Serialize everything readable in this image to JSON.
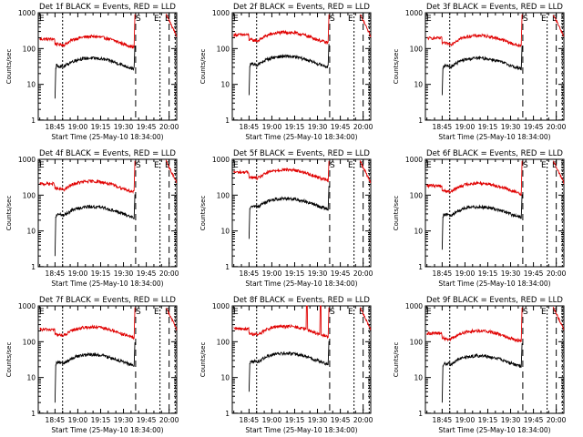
{
  "colors": {
    "events": "#000000",
    "lld": "#e00000",
    "axes": "#000000",
    "background": "#ffffff"
  },
  "chart_data": [
    {
      "type": "line",
      "title": "Det 1f BLACK = Events, RED = LLD",
      "xlabel": "Start Time (25-May-10 18:34:00)",
      "ylabel": "Counts/sec",
      "ylim": [
        1,
        1000
      ],
      "y_scale": "log",
      "y_ticks": [
        "1",
        "10",
        "100",
        "1000"
      ],
      "x_ticks": [
        "18:45",
        "19:00",
        "19:15",
        "19:30",
        "19:45",
        "20:00"
      ],
      "x_start": "18:34",
      "x_end": "20:05",
      "markers": [
        {
          "label": "S",
          "time": "19:38"
        },
        {
          "label": "E",
          "time": "19:51"
        },
        {
          "label": "E",
          "time": "20:02"
        }
      ],
      "lld_level": 160,
      "events_level": 40,
      "events_drop": 4
    },
    {
      "type": "line",
      "title": "Det 2f BLACK = Events, RED = LLD",
      "xlabel": "Start Time (25-May-10 18:34:00)",
      "ylabel": "Counts/sec",
      "ylim": [
        1,
        1000
      ],
      "y_scale": "log",
      "y_ticks": [
        "1",
        "10",
        "100",
        "1000"
      ],
      "x_ticks": [
        "18:45",
        "19:00",
        "19:15",
        "19:30",
        "19:45",
        "20:00"
      ],
      "x_start": "18:34",
      "x_end": "20:05",
      "markers": [
        {
          "label": "S",
          "time": "19:38"
        },
        {
          "label": "E",
          "time": "19:51"
        },
        {
          "label": "E",
          "time": "20:02"
        }
      ],
      "lld_level": 210,
      "events_level": 45,
      "events_drop": 5
    },
    {
      "type": "line",
      "title": "Det 3f BLACK = Events, RED = LLD",
      "xlabel": "Start Time (25-May-10 18:34:00)",
      "ylabel": "Counts/sec",
      "ylim": [
        1,
        1000
      ],
      "y_scale": "log",
      "y_ticks": [
        "1",
        "10",
        "100",
        "1000"
      ],
      "x_ticks": [
        "18:45",
        "19:00",
        "19:15",
        "19:30",
        "19:45",
        "20:00"
      ],
      "x_start": "18:34",
      "x_end": "20:05",
      "markers": [
        {
          "label": "S",
          "time": "19:38"
        },
        {
          "label": "E",
          "time": "19:51"
        },
        {
          "label": "E",
          "time": "20:02"
        }
      ],
      "lld_level": 170,
      "events_level": 40,
      "events_drop": 5
    },
    {
      "type": "line",
      "title": "Det 4f BLACK = Events, RED = LLD",
      "xlabel": "Start Time (25-May-10 18:34:00)",
      "ylabel": "Counts/sec",
      "ylim": [
        1,
        1000
      ],
      "y_scale": "log",
      "y_ticks": [
        "1",
        "10",
        "100",
        "1000"
      ],
      "x_ticks": [
        "18:45",
        "19:00",
        "19:15",
        "19:30",
        "19:45",
        "20:00"
      ],
      "x_start": "18:34",
      "x_end": "20:05",
      "markers": [
        {
          "label": "S",
          "time": "19:38"
        },
        {
          "label": "E",
          "time": "19:51"
        },
        {
          "label": "E",
          "time": "20:02"
        }
      ],
      "lld_level": 180,
      "events_level": 35,
      "events_drop": 2
    },
    {
      "type": "line",
      "title": "Det 5f BLACK = Events, RED = LLD",
      "xlabel": "Start Time (25-May-10 18:34:00)",
      "ylabel": "Counts/sec",
      "ylim": [
        1,
        1000
      ],
      "y_scale": "log",
      "y_ticks": [
        "1",
        "10",
        "100",
        "1000"
      ],
      "x_ticks": [
        "18:45",
        "19:00",
        "19:15",
        "19:30",
        "19:45",
        "20:00"
      ],
      "x_start": "18:34",
      "x_end": "20:05",
      "markers": [
        {
          "label": "S",
          "time": "19:38"
        },
        {
          "label": "E",
          "time": "19:51"
        },
        {
          "label": "E",
          "time": "20:02"
        }
      ],
      "lld_level": 380,
      "events_level": 60,
      "events_drop": 6
    },
    {
      "type": "line",
      "title": "Det 6f BLACK = Events, RED = LLD",
      "xlabel": "Start Time (25-May-10 18:34:00)",
      "ylabel": "Counts/sec",
      "ylim": [
        1,
        1000
      ],
      "y_scale": "log",
      "y_ticks": [
        "1",
        "10",
        "100",
        "1000"
      ],
      "x_ticks": [
        "18:45",
        "19:00",
        "19:15",
        "19:30",
        "19:45",
        "20:00"
      ],
      "x_start": "18:34",
      "x_end": "20:05",
      "markers": [
        {
          "label": "S",
          "time": "19:38"
        },
        {
          "label": "E",
          "time": "19:51"
        },
        {
          "label": "E",
          "time": "20:02"
        }
      ],
      "lld_level": 160,
      "events_level": 35,
      "events_drop": 3
    },
    {
      "type": "line",
      "title": "Det 7f BLACK = Events, RED = LLD",
      "xlabel": "Start Time (25-May-10 18:34:00)",
      "ylabel": "Counts/sec",
      "ylim": [
        1,
        1000
      ],
      "y_scale": "log",
      "y_ticks": [
        "1",
        "10",
        "100",
        "1000"
      ],
      "x_ticks": [
        "18:45",
        "19:00",
        "19:15",
        "19:30",
        "19:45",
        "20:00"
      ],
      "x_start": "18:34",
      "x_end": "20:05",
      "markers": [
        {
          "label": "S",
          "time": "19:38"
        },
        {
          "label": "E",
          "time": "19:51"
        },
        {
          "label": "E",
          "time": "20:02"
        }
      ],
      "lld_level": 190,
      "events_level": 32,
      "events_drop": 2
    },
    {
      "type": "line",
      "title": "Det 8f BLACK = Events, RED = LLD",
      "xlabel": "Start Time (25-May-10 18:34:00)",
      "ylabel": "Counts/sec",
      "ylim": [
        1,
        1000
      ],
      "y_scale": "log",
      "y_ticks": [
        "1",
        "10",
        "100",
        "1000"
      ],
      "x_ticks": [
        "18:45",
        "19:00",
        "19:15",
        "19:30",
        "19:45",
        "20:00"
      ],
      "x_start": "18:34",
      "x_end": "20:05",
      "markers": [
        {
          "label": "S",
          "time": "19:38"
        },
        {
          "label": "E",
          "time": "19:51"
        },
        {
          "label": "E",
          "time": "20:02"
        }
      ],
      "lld_level": 200,
      "events_level": 35,
      "events_drop": 4,
      "spikes": [
        "19:23",
        "19:32"
      ]
    },
    {
      "type": "line",
      "title": "Det 9f BLACK = Events, RED = LLD",
      "xlabel": "Start Time (25-May-10 18:34:00)",
      "ylabel": "Counts/sec",
      "ylim": [
        1,
        1000
      ],
      "y_scale": "log",
      "y_ticks": [
        "1",
        "10",
        "100",
        "1000"
      ],
      "x_ticks": [
        "18:45",
        "19:00",
        "19:15",
        "19:30",
        "19:45",
        "20:00"
      ],
      "x_start": "18:34",
      "x_end": "20:05",
      "markers": [
        {
          "label": "S",
          "time": "19:38"
        },
        {
          "label": "E",
          "time": "19:51"
        },
        {
          "label": "E",
          "time": "20:02"
        }
      ],
      "lld_level": 150,
      "events_level": 30,
      "events_drop": 2
    }
  ]
}
